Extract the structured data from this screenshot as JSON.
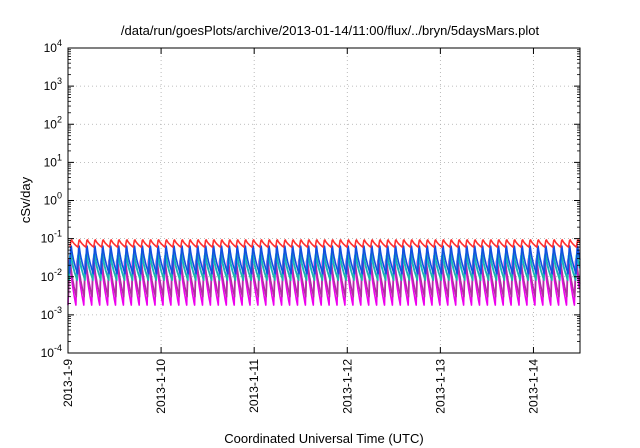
{
  "chart_data": {
    "type": "line",
    "title": "/data/run/goesPlots/archive/2013-01-14/11:00/flux/../bryn/5daysMars.plot",
    "xlabel": "Coordinated Universal Time (UTC)",
    "ylabel": "cSv/day",
    "yscale": "log",
    "ylim": [
      0.0001,
      10000
    ],
    "xlim": [
      "2013-01-09T00:00",
      "2013-01-14T12:00"
    ],
    "grid": true,
    "y_ticks": [
      {
        "base": "10",
        "exp": "4"
      },
      {
        "base": "10",
        "exp": "3"
      },
      {
        "base": "10",
        "exp": "2"
      },
      {
        "base": "10",
        "exp": "1"
      },
      {
        "base": "10",
        "exp": "0"
      },
      {
        "base": "10",
        "exp": "-1"
      },
      {
        "base": "10",
        "exp": "-2"
      },
      {
        "base": "10",
        "exp": "-3"
      },
      {
        "base": "10",
        "exp": "-4"
      }
    ],
    "x_ticks": [
      "2013-1-9",
      "2013-1-10",
      "2013-1-11",
      "2013-1-12",
      "2013-1-13",
      "2013-1-14"
    ],
    "oscillation_period_hours": 2.04,
    "series": [
      {
        "color": "#ee00ee",
        "max": 0.05,
        "min": 0.0018
      },
      {
        "color": "#b030a0",
        "max": 0.045,
        "min": 0.003
      },
      {
        "color": "#00ccff",
        "max": 0.05,
        "min": 0.009
      },
      {
        "color": "#20b2aa",
        "max": 0.06,
        "min": 0.008
      },
      {
        "color": "#1050e0",
        "max": 0.085,
        "min": 0.012
      },
      {
        "color": "#ff3030",
        "max": 0.1,
        "min": 0.06
      }
    ]
  }
}
